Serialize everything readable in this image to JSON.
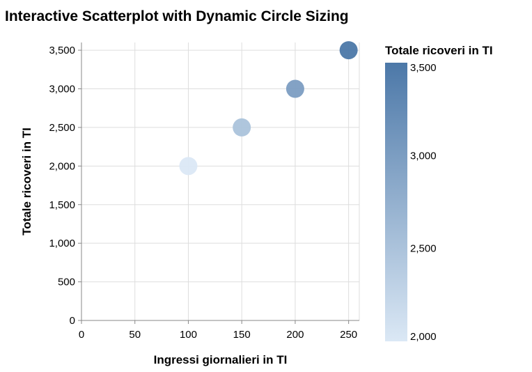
{
  "chart_data": {
    "type": "scatter",
    "title": "Interactive Scatterplot with Dynamic Circle Sizing",
    "xlabel": "Ingressi giornalieri in TI",
    "ylabel": "Totale ricoveri in TI",
    "xlim": [
      0,
      260
    ],
    "ylim": [
      0,
      3600
    ],
    "x_ticks": [
      0,
      50,
      100,
      150,
      200,
      250
    ],
    "x_tick_labels": [
      "0",
      "50",
      "100",
      "150",
      "200",
      "250"
    ],
    "y_ticks": [
      0,
      500,
      1000,
      1500,
      2000,
      2500,
      3000,
      3500
    ],
    "y_tick_labels": [
      "0",
      "500",
      "1,000",
      "1,500",
      "2,000",
      "2,500",
      "3,000",
      "3,500"
    ],
    "grid": true,
    "points": [
      {
        "x": 100,
        "y": 2000
      },
      {
        "x": 150,
        "y": 2500
      },
      {
        "x": 200,
        "y": 3000
      },
      {
        "x": 250,
        "y": 3500
      }
    ],
    "color_legend": {
      "title": "Totale ricoveri in TI",
      "placement": "right",
      "domain": [
        2000,
        3500
      ],
      "ticks": [
        2000,
        2500,
        3000,
        3500
      ],
      "tick_labels": [
        "2,000",
        "2,500",
        "3,000",
        "3,500"
      ],
      "color_low": "#dbe8f5",
      "color_high": "#4c78a8"
    }
  }
}
